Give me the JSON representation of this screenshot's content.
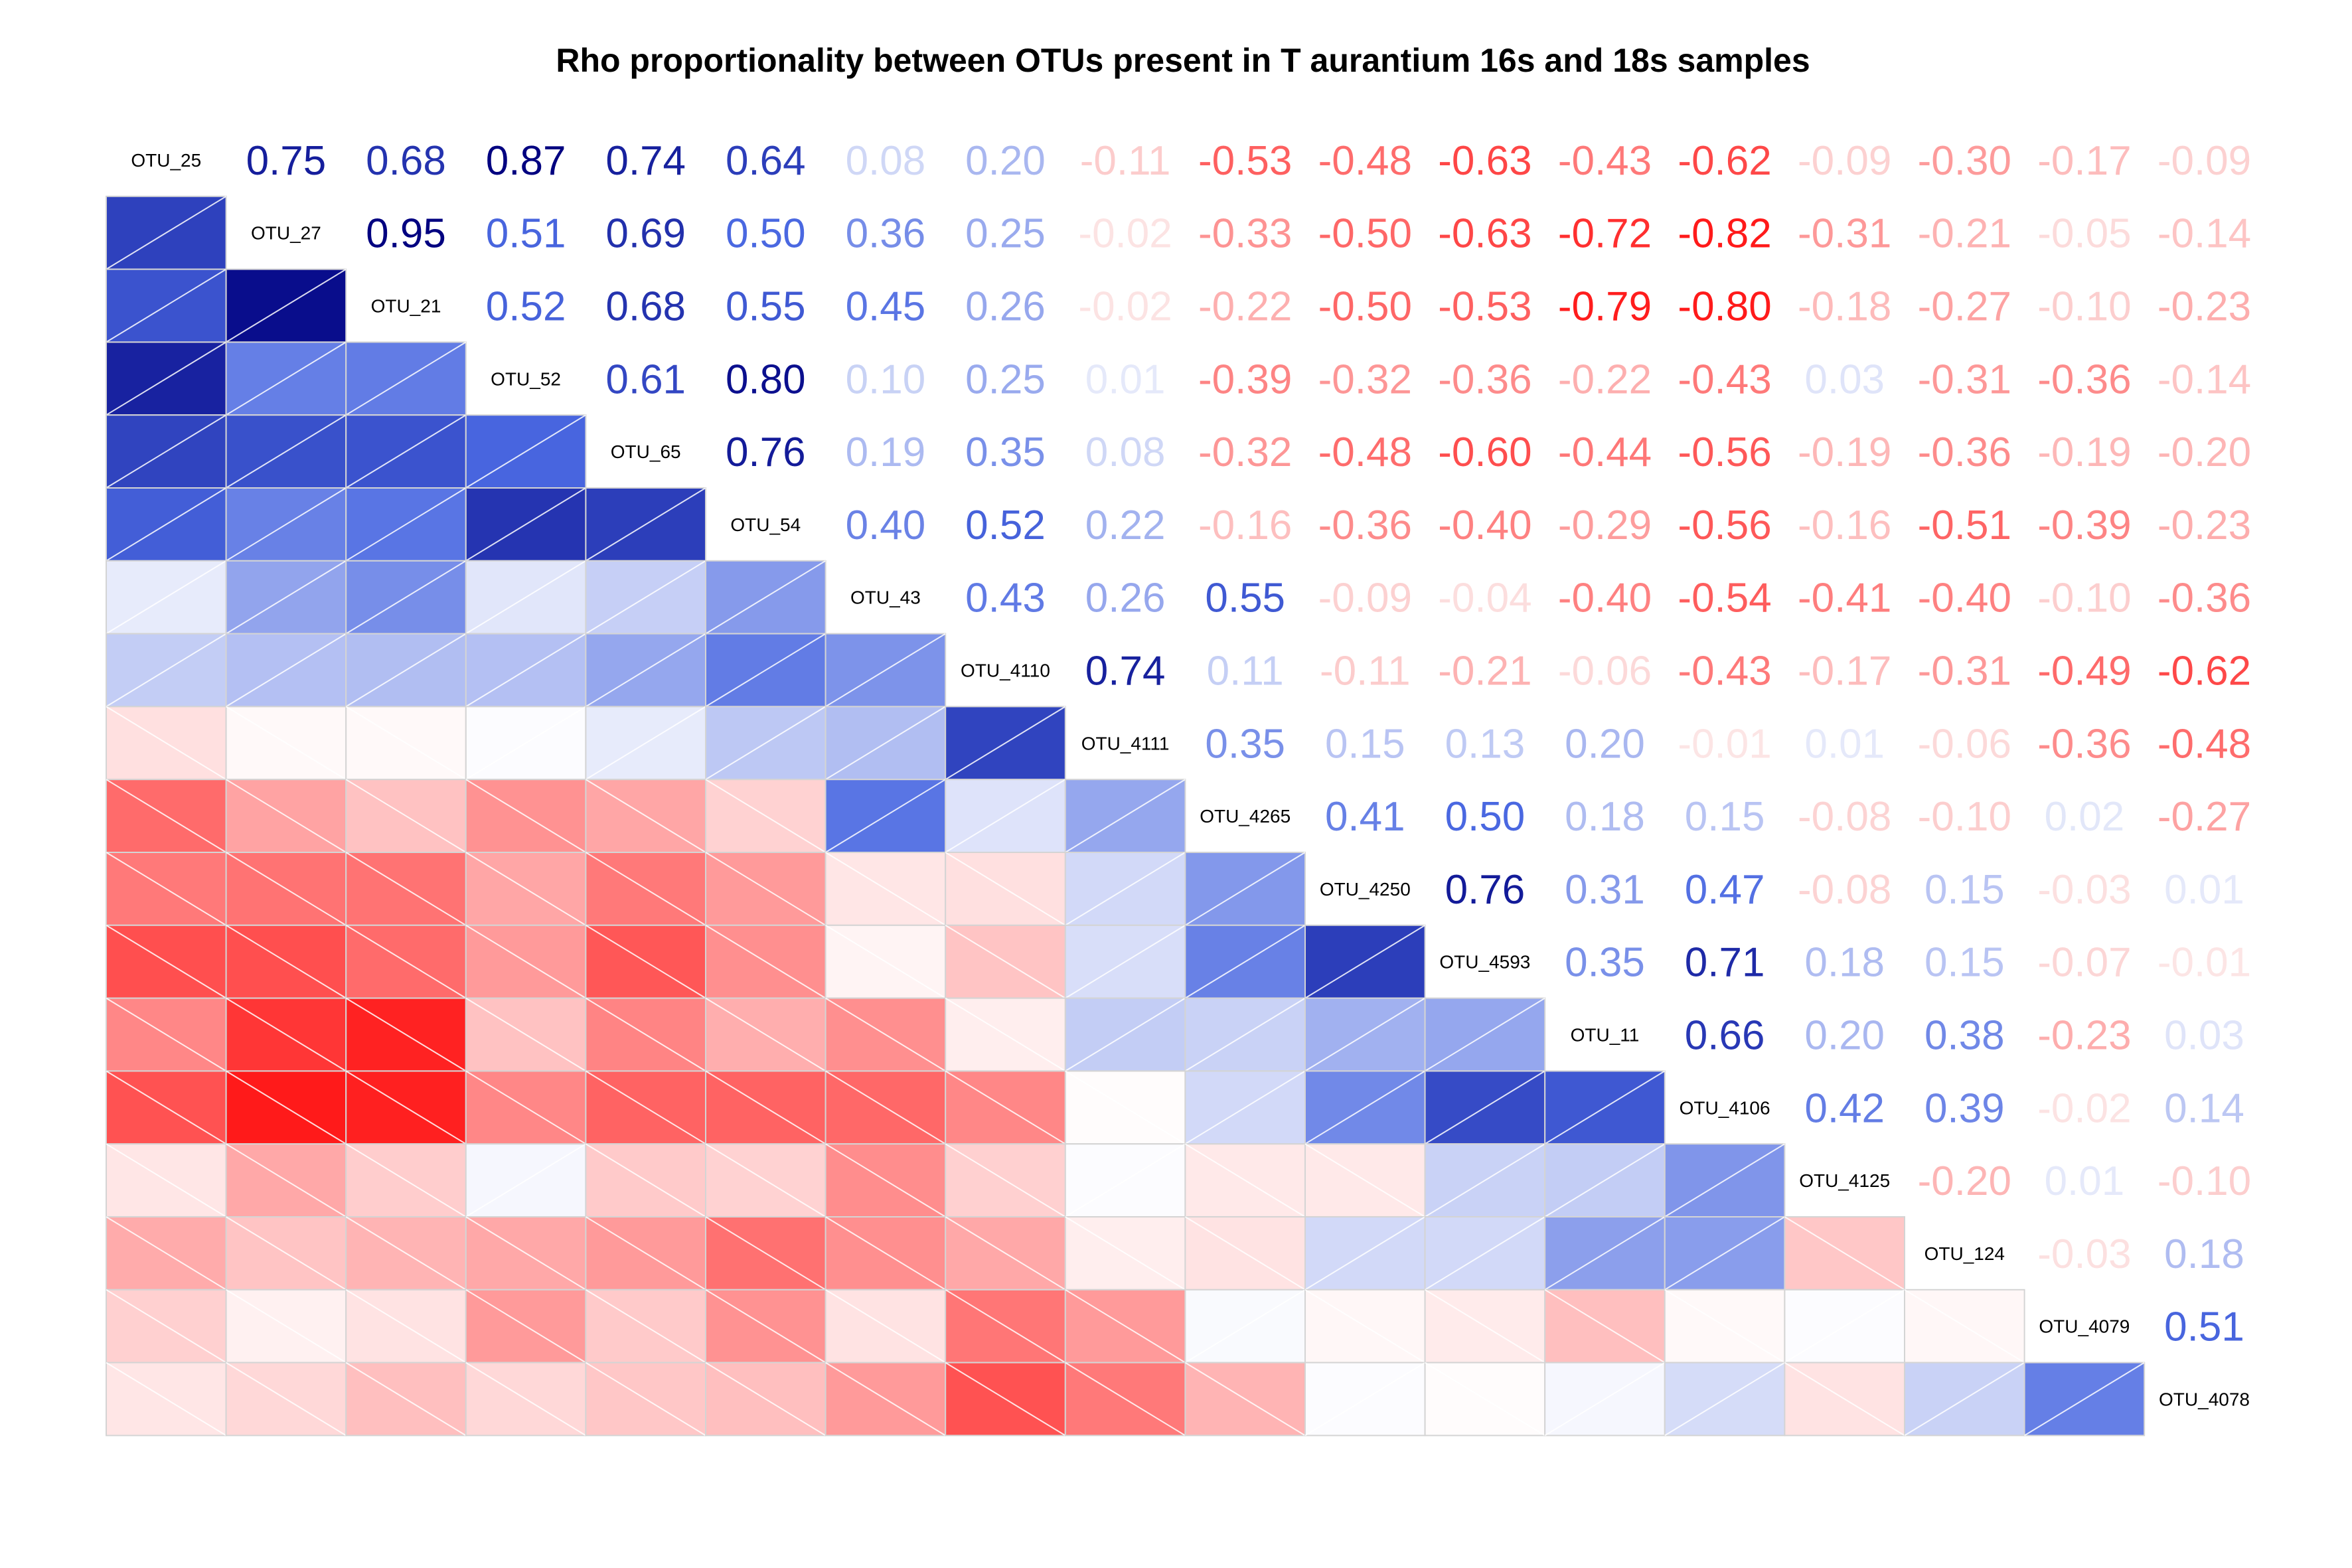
{
  "chart_data": {
    "type": "heatmap",
    "title": "Rho proportionality between OTUs present in T aurantium 16s and 18s samples",
    "labels": [
      "OTU_25",
      "OTU_27",
      "OTU_21",
      "OTU_52",
      "OTU_65",
      "OTU_54",
      "OTU_43",
      "OTU_4110",
      "OTU_4111",
      "OTU_4265",
      "OTU_4250",
      "OTU_4593",
      "OTU_11",
      "OTU_4106",
      "OTU_4125",
      "OTU_124",
      "OTU_4079",
      "OTU_4078"
    ],
    "matrix": [
      [
        1.0,
        0.75,
        0.68,
        0.87,
        0.74,
        0.64,
        0.08,
        0.2,
        -0.11,
        -0.53,
        -0.48,
        -0.63,
        -0.43,
        -0.62,
        -0.09,
        -0.3,
        -0.17,
        -0.09
      ],
      [
        0.75,
        1.0,
        0.95,
        0.51,
        0.69,
        0.5,
        0.36,
        0.25,
        -0.02,
        -0.33,
        -0.5,
        -0.63,
        -0.72,
        -0.82,
        -0.31,
        -0.21,
        -0.05,
        -0.14
      ],
      [
        0.68,
        0.95,
        1.0,
        0.52,
        0.68,
        0.55,
        0.45,
        0.26,
        -0.02,
        -0.22,
        -0.5,
        -0.53,
        -0.79,
        -0.8,
        -0.18,
        -0.27,
        -0.1,
        -0.23
      ],
      [
        0.87,
        0.51,
        0.52,
        1.0,
        0.61,
        0.8,
        0.1,
        0.25,
        0.01,
        -0.39,
        -0.32,
        -0.36,
        -0.22,
        -0.43,
        0.03,
        -0.31,
        -0.36,
        -0.14
      ],
      [
        0.74,
        0.69,
        0.68,
        0.61,
        1.0,
        0.76,
        0.19,
        0.35,
        0.08,
        -0.32,
        -0.48,
        -0.6,
        -0.44,
        -0.56,
        -0.19,
        -0.36,
        -0.19,
        -0.2
      ],
      [
        0.64,
        0.5,
        0.55,
        0.8,
        0.76,
        1.0,
        0.4,
        0.52,
        0.22,
        -0.16,
        -0.36,
        -0.4,
        -0.29,
        -0.56,
        -0.16,
        -0.51,
        -0.39,
        -0.23
      ],
      [
        0.08,
        0.36,
        0.45,
        0.1,
        0.19,
        0.4,
        1.0,
        0.43,
        0.26,
        0.55,
        -0.09,
        -0.04,
        -0.4,
        -0.54,
        -0.41,
        -0.4,
        -0.1,
        -0.36
      ],
      [
        0.2,
        0.25,
        0.26,
        0.25,
        0.35,
        0.52,
        0.43,
        1.0,
        0.74,
        0.11,
        -0.11,
        -0.21,
        -0.06,
        -0.43,
        -0.17,
        -0.31,
        -0.49,
        -0.62
      ],
      [
        -0.11,
        -0.02,
        -0.02,
        0.01,
        0.08,
        0.22,
        0.26,
        0.74,
        1.0,
        0.35,
        0.15,
        0.13,
        0.2,
        -0.01,
        0.01,
        -0.06,
        -0.36,
        -0.48
      ],
      [
        -0.53,
        -0.33,
        -0.22,
        -0.39,
        -0.32,
        -0.16,
        0.55,
        0.11,
        0.35,
        1.0,
        0.41,
        0.5,
        0.18,
        0.15,
        -0.08,
        -0.1,
        0.02,
        -0.27
      ],
      [
        -0.48,
        -0.5,
        -0.5,
        -0.32,
        -0.48,
        -0.36,
        -0.09,
        -0.11,
        0.15,
        0.41,
        1.0,
        0.76,
        0.31,
        0.47,
        -0.08,
        0.15,
        -0.03,
        0.01
      ],
      [
        -0.63,
        -0.63,
        -0.53,
        -0.36,
        -0.6,
        -0.4,
        -0.04,
        -0.21,
        0.13,
        0.5,
        0.76,
        1.0,
        0.35,
        0.71,
        0.18,
        0.15,
        -0.07,
        -0.01
      ],
      [
        -0.43,
        -0.72,
        -0.79,
        -0.22,
        -0.44,
        -0.29,
        -0.4,
        -0.06,
        0.2,
        0.18,
        0.31,
        0.35,
        1.0,
        0.66,
        0.2,
        0.38,
        -0.23,
        0.03
      ],
      [
        -0.62,
        -0.82,
        -0.8,
        -0.43,
        -0.56,
        -0.56,
        -0.54,
        -0.43,
        -0.01,
        0.15,
        0.47,
        0.71,
        0.66,
        1.0,
        0.42,
        0.39,
        -0.02,
        0.14
      ],
      [
        -0.09,
        -0.31,
        -0.18,
        0.03,
        -0.19,
        -0.16,
        -0.41,
        -0.17,
        0.01,
        -0.08,
        -0.08,
        0.18,
        0.2,
        0.42,
        1.0,
        -0.2,
        0.01,
        -0.1
      ],
      [
        -0.3,
        -0.21,
        -0.27,
        -0.31,
        -0.36,
        -0.51,
        -0.4,
        -0.31,
        -0.06,
        -0.1,
        0.15,
        0.15,
        0.38,
        0.39,
        -0.2,
        1.0,
        -0.03,
        0.18
      ],
      [
        -0.17,
        -0.05,
        -0.1,
        -0.36,
        -0.19,
        -0.39,
        -0.1,
        -0.49,
        -0.36,
        0.02,
        -0.03,
        -0.07,
        -0.23,
        -0.02,
        0.01,
        -0.03,
        1.0,
        0.51
      ],
      [
        -0.09,
        -0.14,
        -0.23,
        -0.14,
        -0.2,
        -0.23,
        -0.36,
        -0.62,
        -0.48,
        -0.27,
        0.01,
        -0.01,
        0.03,
        0.14,
        -0.1,
        0.18,
        0.51,
        1.0
      ]
    ],
    "lower_triangle": "shaded cells with hatch lines",
    "upper_triangle": "numeric values",
    "diagonal": "variable labels",
    "color_scale": {
      "min": -1,
      "max": 1,
      "negative": "#FF1A1A",
      "mid": "#FFFFFF",
      "positive": "#000080"
    },
    "legend": "none",
    "grid": false
  }
}
